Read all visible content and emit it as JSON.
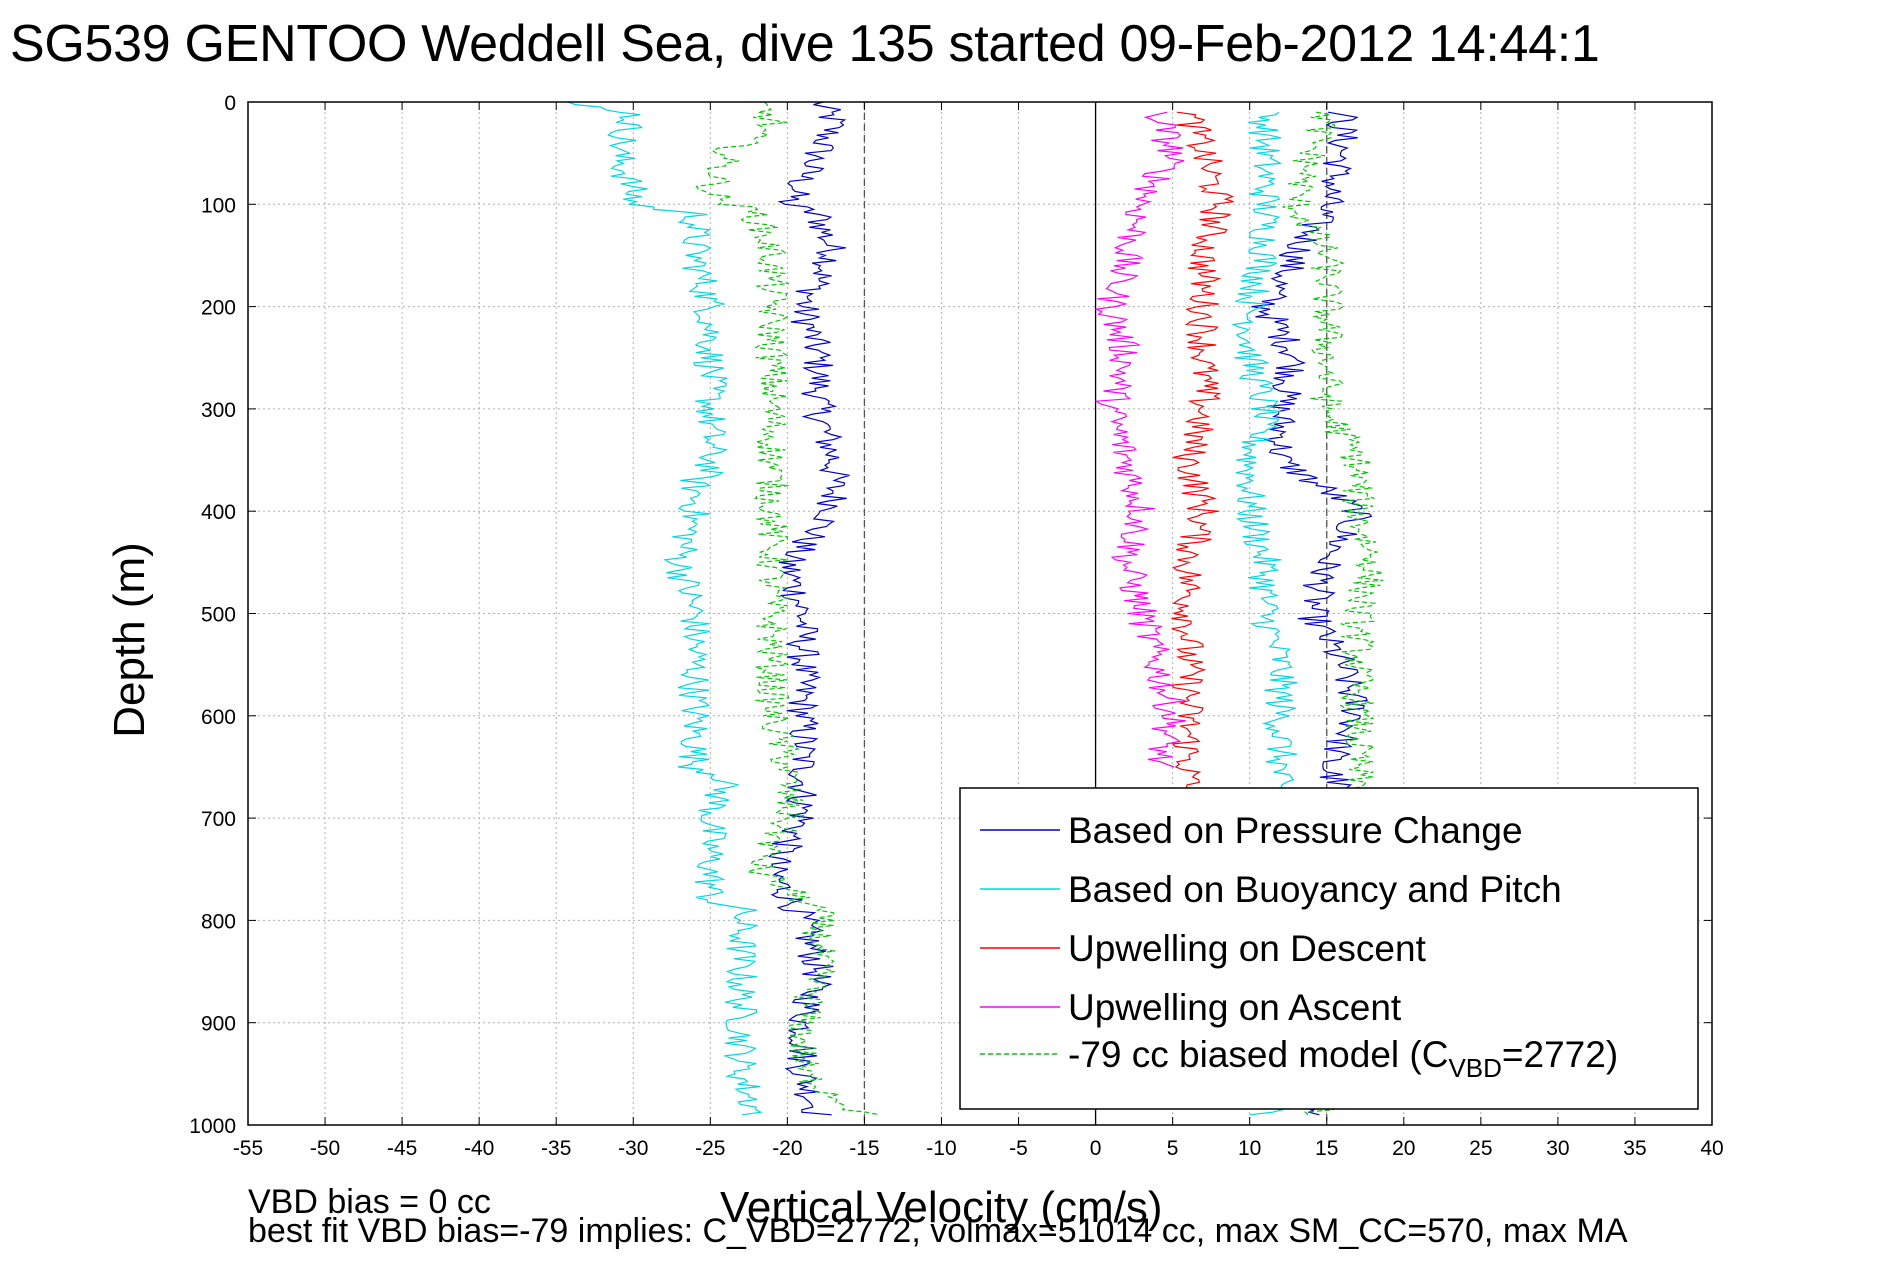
{
  "title": "SG539 GENTOO Weddell Sea, dive 135 started 09-Feb-2012 14:44:1",
  "footer": {
    "line1": "VBD bias = 0 cc",
    "line2": "best fit VBD bias=-79 implies: C_VBD=2772, volmax=51014 cc, max SM_CC=570, max MA"
  },
  "chart_data": {
    "type": "line",
    "xlabel": "Vertical Velocity (cm/s)",
    "ylabel": "Depth (m)",
    "xlim": [
      -55,
      40
    ],
    "ylim": [
      1000,
      0
    ],
    "y_reversed": true,
    "grid": true,
    "xticks": [
      -55,
      -50,
      -45,
      -40,
      -35,
      -30,
      -25,
      -20,
      -15,
      -10,
      -5,
      0,
      5,
      10,
      15,
      20,
      25,
      30,
      35,
      40
    ],
    "yticks": [
      0,
      100,
      200,
      300,
      400,
      500,
      600,
      700,
      800,
      900,
      1000
    ],
    "reference_lines": [
      {
        "x": -15,
        "style": "dashed",
        "color": "#555555"
      },
      {
        "x": 0,
        "style": "solid",
        "color": "#000000"
      },
      {
        "x": 15,
        "style": "dashed",
        "color": "#555555"
      }
    ],
    "legend_position": "lower-right",
    "series": [
      {
        "name": "Based on Pressure Change",
        "color": "#0000c8",
        "style": "solid",
        "depth": [
          0,
          20,
          50,
          100,
          110,
          150,
          200,
          250,
          300,
          350,
          400,
          450,
          500,
          550,
          600,
          650,
          700,
          750,
          800,
          850,
          900,
          950,
          990
        ],
        "x": [
          -18,
          -17,
          -18,
          -20,
          -18,
          -17,
          -19,
          -18,
          -18,
          -17,
          -17,
          -20,
          -19,
          -19,
          -19,
          -19,
          -19,
          -21,
          -19,
          -18,
          -19,
          -19,
          -18
        ],
        "ascent_depth": [
          990,
          950,
          900,
          850,
          800,
          750,
          700,
          650,
          600,
          550,
          500,
          450,
          400,
          350,
          300,
          250,
          200,
          150,
          100,
          50,
          10
        ],
        "ascent_x": [
          14,
          14,
          14,
          15,
          16,
          16,
          17,
          15,
          17,
          16,
          14,
          15,
          17,
          12,
          12,
          13,
          11,
          13,
          15,
          16,
          16
        ]
      },
      {
        "name": "Based on Buoyancy and Pitch",
        "color": "#00d8e0",
        "style": "solid",
        "depth": [
          0,
          10,
          50,
          90,
          100,
          110,
          150,
          200,
          250,
          300,
          360,
          370,
          400,
          450,
          500,
          550,
          600,
          650,
          660,
          700,
          780,
          790,
          800,
          850,
          900,
          950,
          990
        ],
        "x": [
          -35,
          -30,
          -31,
          -30,
          -30,
          -26,
          -26,
          -25,
          -25,
          -25,
          -25,
          -26,
          -26,
          -27,
          -26,
          -26,
          -26,
          -26,
          -24,
          -25,
          -25,
          -23,
          -23,
          -23,
          -23,
          -23,
          -22
        ],
        "ascent_depth": [
          990,
          950,
          900,
          850,
          800,
          750,
          700,
          650,
          600,
          550,
          500,
          450,
          400,
          350,
          300,
          250,
          200,
          150,
          100,
          50,
          10
        ],
        "ascent_x": [
          11,
          12,
          11,
          12,
          12,
          11,
          11,
          12,
          12,
          12,
          11,
          11,
          10,
          10,
          11,
          10,
          10,
          11,
          11,
          11,
          11
        ]
      },
      {
        "name": "Upwelling on Descent",
        "color": "#ff0000",
        "style": "solid",
        "depth": [
          10,
          50,
          100,
          150,
          200,
          250,
          300,
          350,
          400,
          450,
          500,
          550,
          600,
          650,
          680
        ],
        "x": [
          6,
          7,
          8,
          7,
          7,
          7,
          7,
          6,
          7,
          6,
          6,
          6,
          6,
          6,
          6
        ]
      },
      {
        "name": "Upwelling on Ascent",
        "color": "#ff00ff",
        "style": "solid",
        "depth": [
          10,
          50,
          100,
          150,
          200,
          250,
          300,
          350,
          400,
          450,
          500,
          550,
          600,
          650
        ],
        "x": [
          4,
          5,
          3,
          2,
          1,
          2,
          1,
          2,
          3,
          2,
          3,
          4,
          5,
          4
        ]
      },
      {
        "name": "-79 cc biased model (C_VBD=2772)",
        "color": "#00c800",
        "style": "dashed",
        "depth": [
          0,
          20,
          50,
          90,
          110,
          150,
          200,
          250,
          300,
          350,
          400,
          450,
          500,
          550,
          600,
          650,
          700,
          750,
          790,
          800,
          850,
          900,
          950,
          990
        ],
        "x": [
          -22,
          -21,
          -24,
          -25,
          -22,
          -21,
          -21,
          -21,
          -21,
          -21,
          -21,
          -21,
          -21,
          -21,
          -21,
          -20,
          -20,
          -22,
          -18,
          -18,
          -18,
          -19,
          -19,
          -15
        ],
        "ascent_depth": [
          990,
          950,
          900,
          850,
          800,
          750,
          700,
          650,
          600,
          550,
          500,
          450,
          400,
          350,
          300,
          250,
          200,
          150,
          100,
          50,
          10
        ],
        "ascent_x": [
          14,
          17,
          17,
          17,
          17,
          17,
          17,
          17,
          17,
          17,
          17,
          18,
          17,
          17,
          15,
          15,
          15,
          15,
          13,
          14,
          15
        ]
      }
    ],
    "legend": [
      {
        "label": "Based on Pressure Change"
      },
      {
        "label": "Based on Buoyancy and Pitch"
      },
      {
        "label": "Upwelling on Descent"
      },
      {
        "label": "Upwelling on Ascent"
      },
      {
        "label_prefix": "-79 cc biased model (C",
        "subscript": "VBD",
        "label_suffix": "=2772)"
      }
    ]
  }
}
